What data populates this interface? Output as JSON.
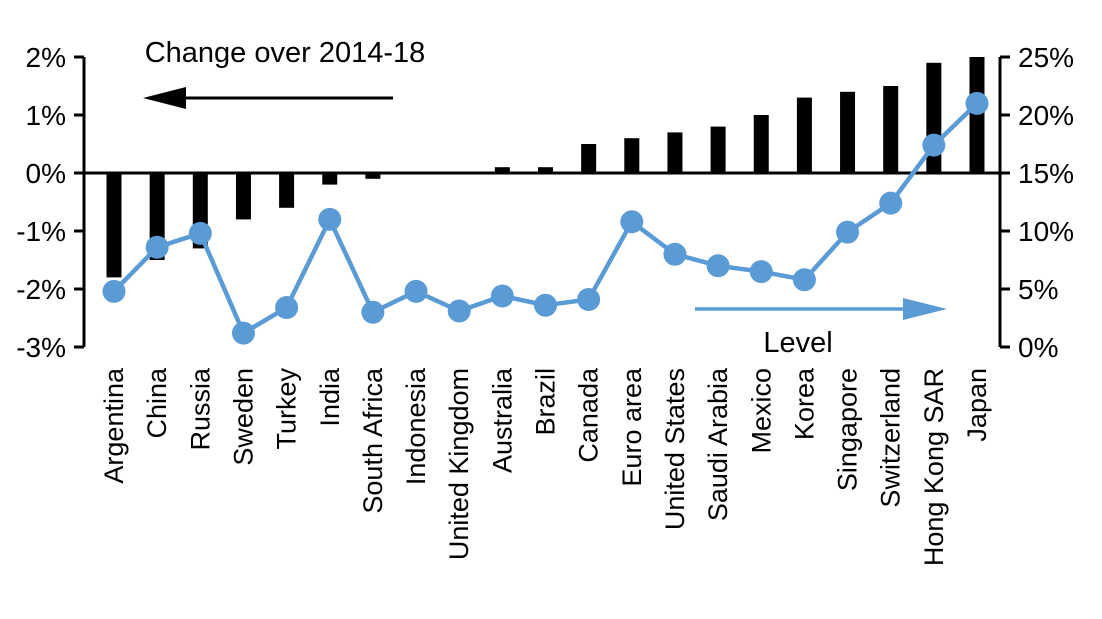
{
  "chart_data": {
    "type": "combo-bar-line",
    "title": "",
    "categories": [
      "Argentina",
      "China",
      "Russia",
      "Sweden",
      "Turkey",
      "India",
      "South Africa",
      "Indonesia",
      "United Kingdom",
      "Australia",
      "Brazil",
      "Canada",
      "Euro area",
      "United States",
      "Saudi Arabia",
      "Mexico",
      "Korea",
      "Singapore",
      "Switzerland",
      "Hong Kong SAR",
      "Japan"
    ],
    "series": [
      {
        "name": "Change over 2014-18",
        "type": "bar",
        "axis": "left",
        "color": "#000000",
        "values": [
          -1.8,
          -1.5,
          -1.3,
          -0.8,
          -0.6,
          -0.2,
          -0.1,
          0,
          0,
          0.1,
          0.1,
          0.5,
          0.6,
          0.7,
          0.8,
          1.0,
          1.3,
          1.4,
          1.5,
          1.9,
          2.0
        ]
      },
      {
        "name": "Level",
        "type": "line",
        "axis": "right",
        "color": "#5B9BD5",
        "values": [
          4.8,
          8.6,
          9.8,
          1.2,
          3.4,
          11.0,
          3.0,
          4.8,
          3.1,
          4.4,
          3.6,
          4.1,
          10.8,
          8.0,
          7.0,
          6.5,
          5.8,
          9.9,
          12.4,
          17.4,
          21.0
        ]
      }
    ],
    "left_axis": {
      "min": -3,
      "max": 2,
      "tick_values": [
        2,
        1,
        0,
        -1,
        -2,
        -3
      ],
      "tick_labels": [
        "2%",
        "1%",
        "0%",
        "-1%",
        "-2%",
        "-3%"
      ]
    },
    "right_axis": {
      "min": 0,
      "max": 25,
      "tick_values": [
        25,
        20,
        15,
        10,
        5,
        0
      ],
      "tick_labels": [
        "25%",
        "20%",
        "15%",
        "10%",
        "5%",
        "0%"
      ]
    },
    "grid": false,
    "legend_position": "in-plot annotations with directional arrows",
    "annotations": [
      {
        "text": "Change over 2014-18",
        "arrow": "left",
        "color": "#000000"
      },
      {
        "text": "Level",
        "arrow": "right",
        "color": "#5B9BD5"
      }
    ]
  }
}
